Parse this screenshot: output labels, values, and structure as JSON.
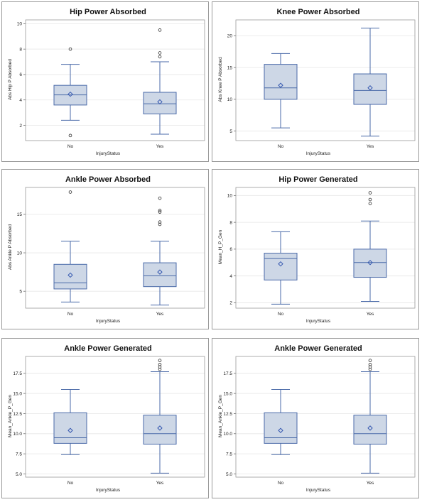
{
  "colors": {
    "box_fill": "#cdd7e6",
    "box_stroke": "#4a6aa8",
    "whisker": "#4a6aa8",
    "median": "#4a6aa8",
    "mean_marker": "#3558b0",
    "outlier": "#333333",
    "grid": "#e6e6e6",
    "frame": "#9a9a9a"
  },
  "chart_data": [
    {
      "type": "box",
      "title": "Hip Power Absorbed",
      "xlabel": "InjuryStatus",
      "ylabel": "Abs Hip P Absorbed",
      "ylim": [
        0.8,
        10.3
      ],
      "yticks": [
        2,
        4,
        6,
        8,
        10
      ],
      "tick_labels": [
        "2",
        "4",
        "6",
        "8",
        "10"
      ],
      "categories": [
        "No",
        "Yes"
      ],
      "boxes": [
        {
          "min": 2.4,
          "q1": 3.6,
          "median": 4.4,
          "q3": 5.15,
          "max": 6.8,
          "mean": 4.45,
          "outliers": [
            8.0,
            1.2
          ]
        },
        {
          "min": 1.3,
          "q1": 2.9,
          "median": 3.7,
          "q3": 4.6,
          "max": 7.0,
          "mean": 3.85,
          "outliers": [
            7.4,
            7.7,
            9.5
          ]
        }
      ]
    },
    {
      "type": "box",
      "title": "Knee Power Absorbed",
      "xlabel": "InjuryStatus",
      "ylabel": "Abs Knee P Absorbed",
      "ylim": [
        3.5,
        22.5
      ],
      "yticks": [
        5,
        10,
        15,
        20
      ],
      "tick_labels": [
        "5",
        "10",
        "15",
        "20"
      ],
      "categories": [
        "No",
        "Yes"
      ],
      "boxes": [
        {
          "min": 5.5,
          "q1": 10.0,
          "median": 11.8,
          "q3": 15.5,
          "max": 17.2,
          "mean": 12.2,
          "outliers": []
        },
        {
          "min": 4.2,
          "q1": 9.2,
          "median": 11.4,
          "q3": 14.0,
          "max": 21.2,
          "mean": 11.8,
          "outliers": []
        }
      ]
    },
    {
      "type": "box",
      "title": "Ankle Power Absorbed",
      "xlabel": "InjuryStatus",
      "ylabel": "Abs Ankle P Absorbed",
      "ylim": [
        2.8,
        18.5
      ],
      "yticks": [
        5,
        10,
        15
      ],
      "tick_labels": [
        "5",
        "10",
        "15"
      ],
      "categories": [
        "No",
        "Yes"
      ],
      "boxes": [
        {
          "min": 3.6,
          "q1": 5.3,
          "median": 6.1,
          "q3": 8.5,
          "max": 11.5,
          "mean": 7.1,
          "outliers": [
            17.9
          ]
        },
        {
          "min": 3.2,
          "q1": 5.6,
          "median": 7.0,
          "q3": 8.7,
          "max": 11.5,
          "mean": 7.5,
          "outliers": [
            13.7,
            14.0,
            15.3,
            15.5,
            17.1
          ]
        }
      ]
    },
    {
      "type": "box",
      "title": "Hip Power Generated",
      "xlabel": "InjuryStatus",
      "ylabel": "Mean_H_P_Gen",
      "ylim": [
        1.6,
        10.6
      ],
      "yticks": [
        2,
        4,
        6,
        8,
        10
      ],
      "tick_labels": [
        "2",
        "4",
        "6",
        "8",
        "10"
      ],
      "categories": [
        "No",
        "Yes"
      ],
      "boxes": [
        {
          "min": 1.9,
          "q1": 3.7,
          "median": 5.3,
          "q3": 5.7,
          "max": 7.3,
          "mean": 4.9,
          "outliers": []
        },
        {
          "min": 2.1,
          "q1": 3.9,
          "median": 5.0,
          "q3": 6.0,
          "max": 8.1,
          "mean": 5.0,
          "outliers": [
            9.4,
            9.7,
            10.2
          ]
        }
      ]
    },
    {
      "type": "box",
      "title": "Ankle Power Generated",
      "xlabel": "InjuryStatus",
      "ylabel": "Mean_Ankle_P_Gen",
      "ylim": [
        4.6,
        19.6
      ],
      "yticks": [
        5.0,
        7.5,
        10.0,
        12.5,
        15.0,
        17.5
      ],
      "tick_labels": [
        "5.0",
        "7.5",
        "10.0",
        "12.5",
        "15.0",
        "17.5"
      ],
      "categories": [
        "No",
        "Yes"
      ],
      "boxes": [
        {
          "min": 7.4,
          "q1": 8.8,
          "median": 9.5,
          "q3": 12.6,
          "max": 15.5,
          "mean": 10.4,
          "outliers": []
        },
        {
          "min": 5.1,
          "q1": 8.7,
          "median": 10.0,
          "q3": 12.3,
          "max": 17.7,
          "mean": 10.7,
          "outliers": [
            18.0,
            18.3,
            18.6,
            19.1
          ]
        }
      ]
    },
    {
      "type": "box",
      "title": "Ankle Power Generated",
      "xlabel": "InjuryStatus",
      "ylabel": "Mean_Ankle_P_Gen",
      "ylim": [
        4.6,
        19.6
      ],
      "yticks": [
        5.0,
        7.5,
        10.0,
        12.5,
        15.0,
        17.5
      ],
      "tick_labels": [
        "5.0",
        "7.5",
        "10.0",
        "12.5",
        "15.0",
        "17.5"
      ],
      "categories": [
        "No",
        "Yes"
      ],
      "boxes": [
        {
          "min": 7.4,
          "q1": 8.8,
          "median": 9.5,
          "q3": 12.6,
          "max": 15.5,
          "mean": 10.4,
          "outliers": []
        },
        {
          "min": 5.1,
          "q1": 8.7,
          "median": 10.0,
          "q3": 12.3,
          "max": 17.7,
          "mean": 10.7,
          "outliers": [
            18.0,
            18.3,
            18.6,
            19.1
          ]
        }
      ]
    }
  ]
}
